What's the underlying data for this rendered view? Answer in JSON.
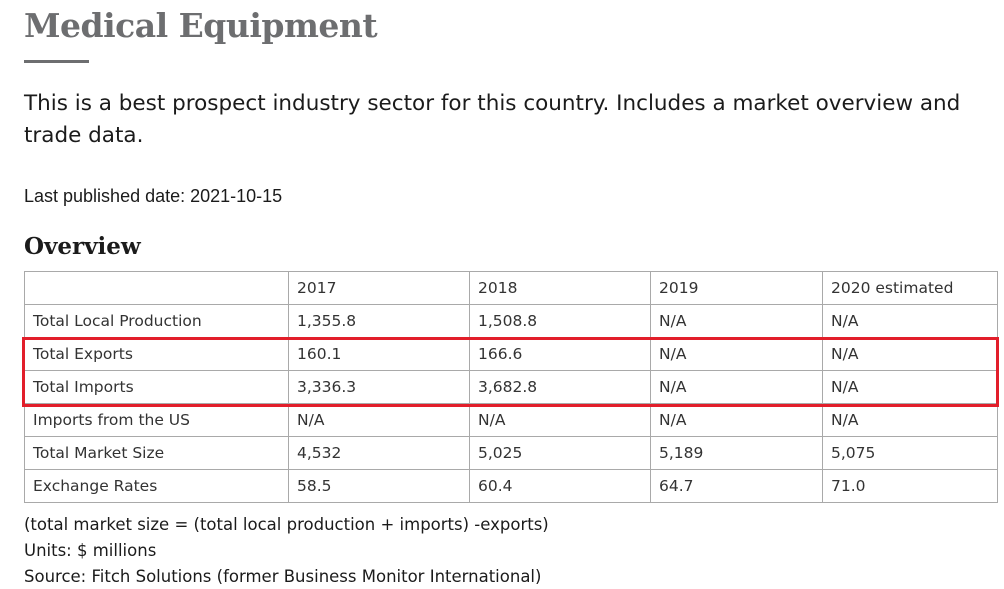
{
  "title": "Medical Equipment",
  "intro": "This is a best prospect industry sector for this country. Includes a market overview and trade data.",
  "published": "Last published date: 2021-10-15",
  "overview_heading": "Overview",
  "table": {
    "header": [
      "",
      "2017",
      "2018",
      "2019",
      "2020 estimated"
    ],
    "rows": [
      [
        "Total Local Production",
        "1,355.8",
        "1,508.8",
        "N/A",
        "N/A"
      ],
      [
        "Total Exports",
        "160.1",
        "166.6",
        "N/A",
        "N/A"
      ],
      [
        "Total Imports",
        "3,336.3",
        "3,682.8",
        "N/A",
        "N/A"
      ],
      [
        "Imports from the US",
        "N/A",
        "N/A",
        "N/A",
        "N/A"
      ],
      [
        "Total Market Size",
        "4,532",
        "5,025",
        "5,189",
        "5,075"
      ],
      [
        "Exchange Rates",
        "58.5",
        "60.4",
        "64.7",
        "71.0"
      ]
    ]
  },
  "highlight_color": "#e21e2a",
  "footnotes": {
    "formula": "(total market size = (total local production + imports) -exports)",
    "units": "Units: $ millions",
    "source": "Source: Fitch Solutions (former Business Monitor International)"
  }
}
